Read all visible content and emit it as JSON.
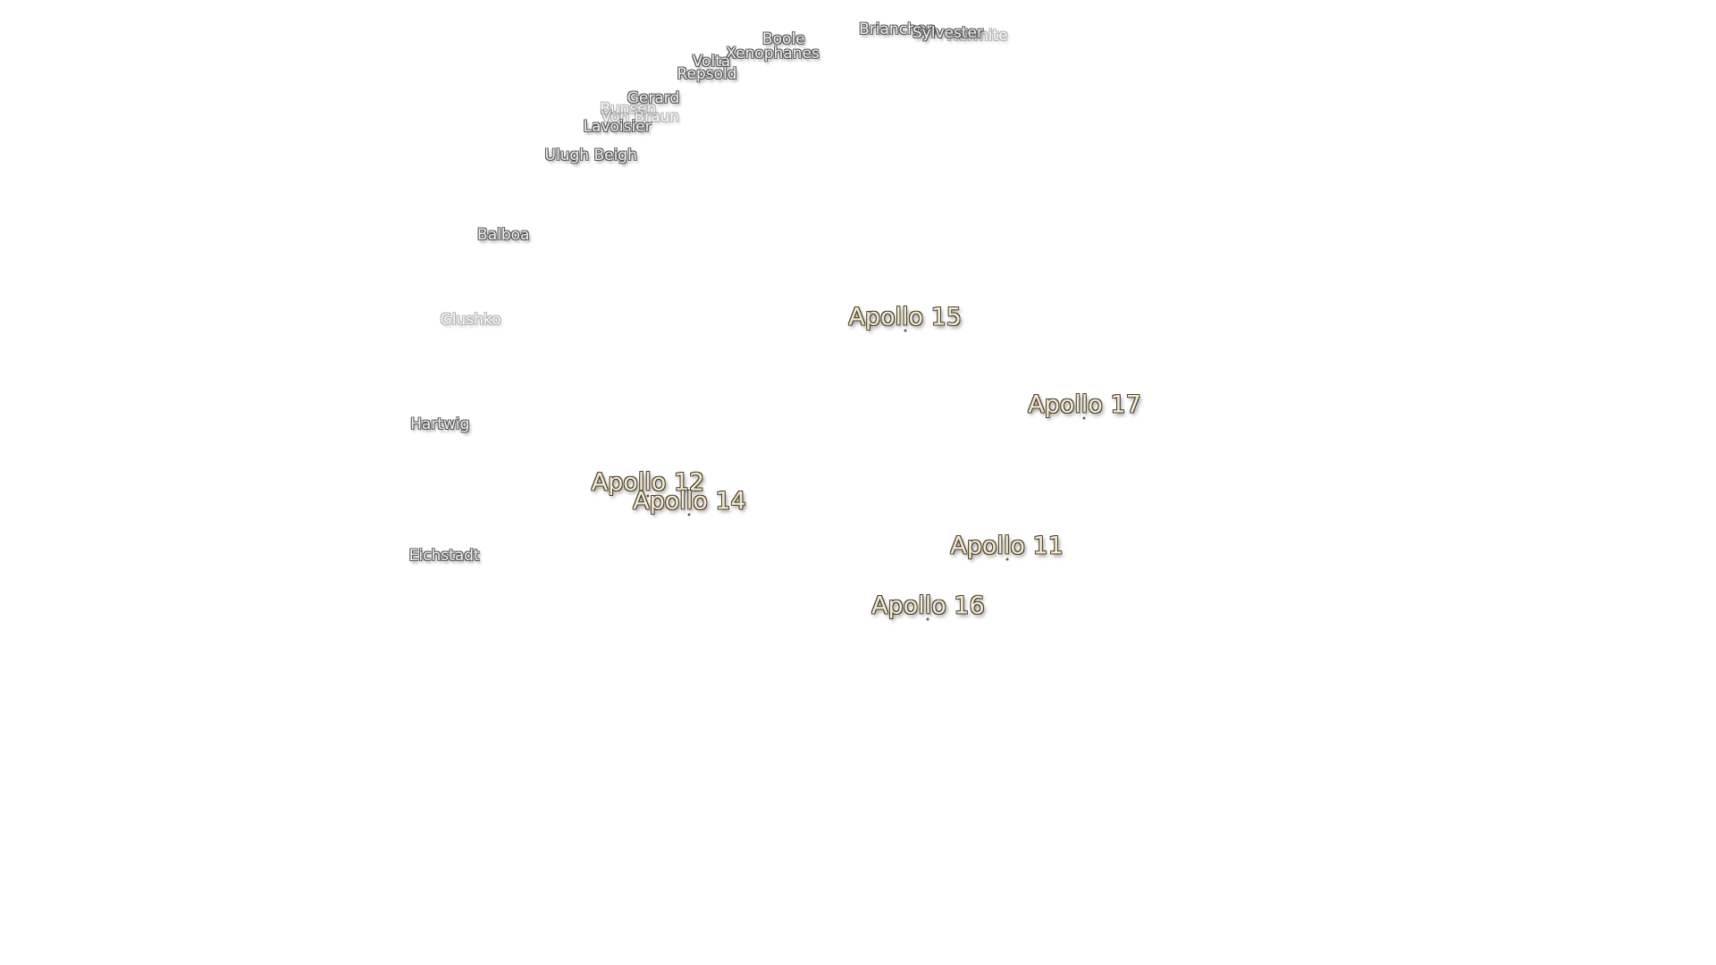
{
  "craters": [
    "Boole",
    "Brianchon",
    "Hermite",
    "Sylvester",
    "Xenophanes",
    "Volta",
    "Repsold",
    "Gerard",
    "Bunsen",
    "Von Braun",
    "Lavoisier",
    "Ulugh Beigh",
    "Balboa",
    "Glushko",
    "Hartwig",
    "Eichstadt"
  ],
  "landing_sites": [
    "Apollo 15",
    "Apollo 17",
    "Apollo 12",
    "Apollo 14",
    "Apollo 11",
    "Apollo 16"
  ]
}
